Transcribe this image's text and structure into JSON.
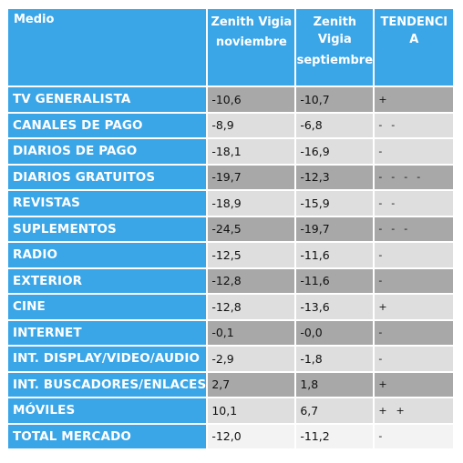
{
  "headers": {
    "medio": "Medio",
    "col1_line1": "Zenith Vigia",
    "col1_line2": "noviembre",
    "col2_line1": "Zenith",
    "col2_line2": "Vigia",
    "col2_line3": "septiembre",
    "col3_line1": "TENDENCI",
    "col3_line2": "A"
  },
  "rows": [
    {
      "medio": "TV GENERALISTA",
      "nov": "-10,6",
      "sep": "-10,7",
      "trend": "+",
      "shade": "dark"
    },
    {
      "medio": "CANALES DE PAGO",
      "nov": "-8,9",
      "sep": "-6,8",
      "trend": "-  -",
      "shade": "light"
    },
    {
      "medio": "DIARIOS DE PAGO",
      "nov": "-18,1",
      "sep": "-16,9",
      "trend": "-",
      "shade": "light"
    },
    {
      "medio": "DIARIOS GRATUITOS",
      "nov": "-19,7",
      "sep": "-12,3",
      "trend": "-  -  -  -",
      "shade": "dark"
    },
    {
      "medio": "REVISTAS",
      "nov": "-18,9",
      "sep": "-15,9",
      "trend": "-  -",
      "shade": "light"
    },
    {
      "medio": "SUPLEMENTOS",
      "nov": "-24,5",
      "sep": "-19,7",
      "trend": "-  -  -",
      "shade": "dark"
    },
    {
      "medio": "RADIO",
      "nov": "-12,5",
      "sep": "-11,6",
      "trend": "-",
      "shade": "light"
    },
    {
      "medio": "EXTERIOR",
      "nov": "-12,8",
      "sep": "-11,6",
      "trend": "-",
      "shade": "dark"
    },
    {
      "medio": "CINE",
      "nov": "-12,8",
      "sep": "-13,6",
      "trend": "+",
      "shade": "light"
    },
    {
      "medio": "INTERNET",
      "nov": "-0,1",
      "sep": "-0,0",
      "trend": "-",
      "shade": "dark"
    },
    {
      "medio": "INT. DISPLAY/VIDEO/AUDIO",
      "nov": "-2,9",
      "sep": "-1,8",
      "trend": "-",
      "shade": "light"
    },
    {
      "medio": "INT. BUSCADORES/ENLACES",
      "nov": "2,7",
      "sep": "1,8",
      "trend": "+",
      "shade": "dark"
    },
    {
      "medio": "MÓVILES",
      "nov": "10,1",
      "sep": "6,7",
      "trend": "+  +",
      "shade": "light"
    },
    {
      "medio": "TOTAL MERCADO",
      "nov": "-12,0",
      "sep": "-11,2",
      "trend": "-",
      "shade": "white"
    }
  ]
}
